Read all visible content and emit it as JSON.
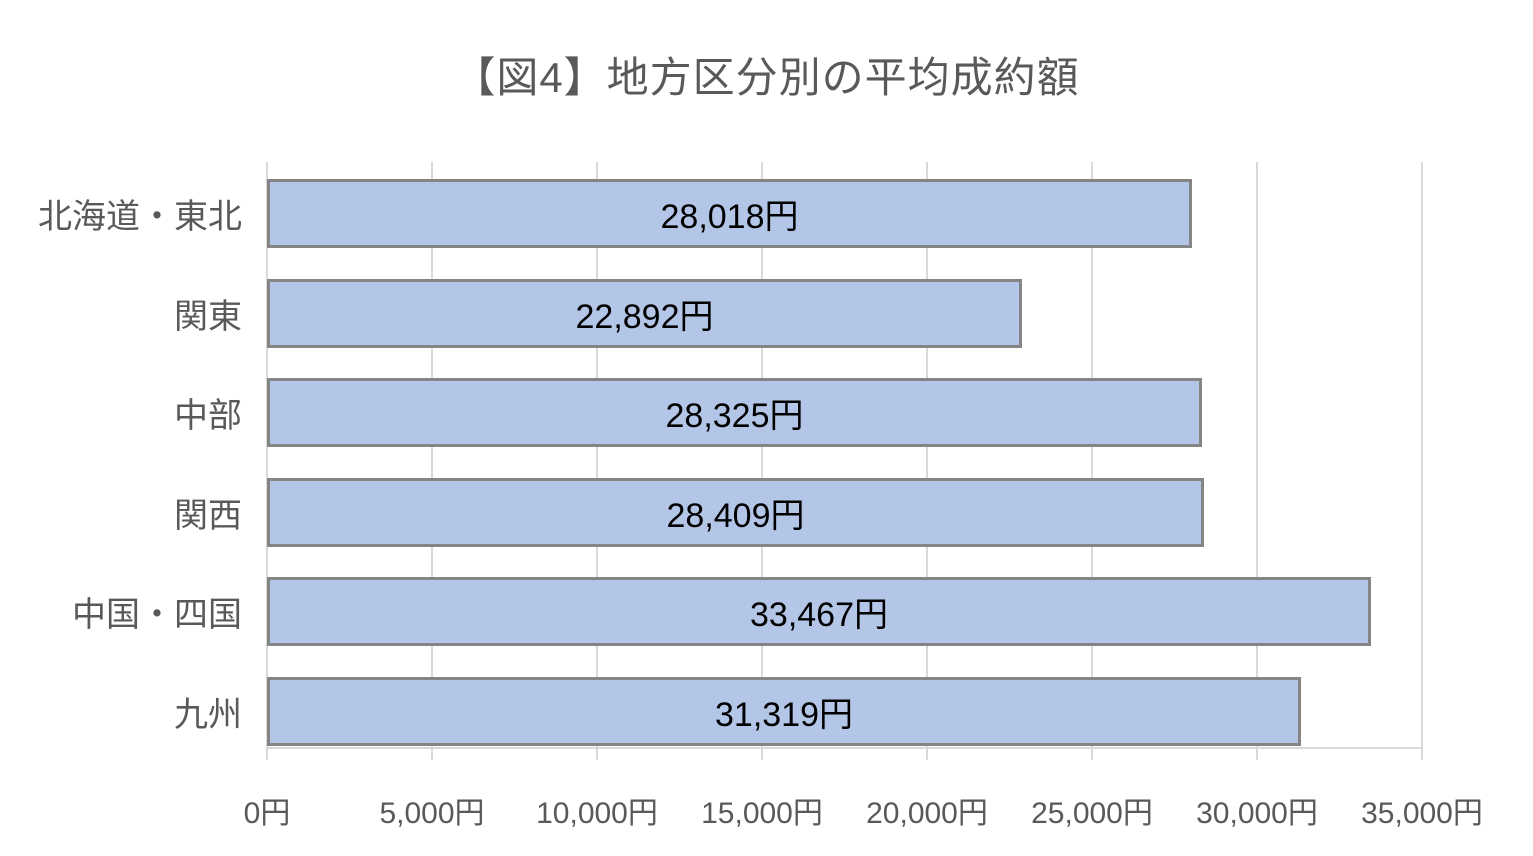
{
  "chart_data": {
    "type": "bar",
    "orientation": "horizontal",
    "title": "【図4】地方区分別の平均成約額",
    "categories": [
      "北海道・東北",
      "関東",
      "中部",
      "関西",
      "中国・四国",
      "九州"
    ],
    "values": [
      28018,
      22892,
      28325,
      28409,
      33467,
      31319
    ],
    "data_labels": [
      "28,018円",
      "22,892円",
      "28,325円",
      "28,409円",
      "33,467円",
      "31,319円"
    ],
    "x_axis": {
      "min": 0,
      "max": 35000,
      "tick_values": [
        0,
        5000,
        10000,
        15000,
        20000,
        25000,
        30000,
        35000
      ],
      "tick_labels": [
        "0円",
        "5,000円",
        "10,000円",
        "15,000円",
        "20,000円",
        "25,000円",
        "30,000円",
        "35,000円"
      ]
    },
    "grid": "vertical-major",
    "legend": "none",
    "colors": {
      "bar_fill": "#b4c6e7",
      "bar_border": "#858585",
      "gridline": "#d9d9d9",
      "axis_line": "#d9d9d9",
      "title_text": "#595959",
      "axis_text": "#595959",
      "data_label_text": "#000000",
      "background": "#ffffff"
    }
  }
}
